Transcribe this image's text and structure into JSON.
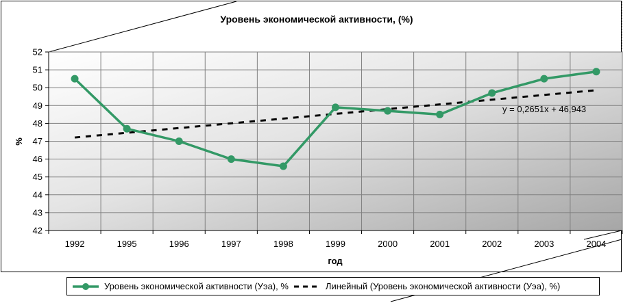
{
  "chart_data": {
    "type": "line",
    "title": "Уровень экономической активности, (%)",
    "xlabel": "год",
    "ylabel": "%",
    "categories": [
      "1992",
      "1995",
      "1996",
      "1997",
      "1998",
      "1999",
      "2000",
      "2001",
      "2002",
      "2003",
      "2004"
    ],
    "yticks": [
      "42",
      "43",
      "44",
      "45",
      "46",
      "47",
      "48",
      "49",
      "50",
      "51",
      "52"
    ],
    "ylim": [
      42,
      52
    ],
    "grid": true,
    "legend_position": "bottom",
    "series": [
      {
        "name": "Уровень экономической активности (Уэа), %",
        "values": [
          50.5,
          47.7,
          47.0,
          46.0,
          45.6,
          48.9,
          48.7,
          48.5,
          49.7,
          50.5,
          50.9
        ],
        "color": "#339966"
      }
    ],
    "trendline": {
      "name": "Линейный (Уровень экономической активности (Уэа), %)",
      "slope": 0.2651,
      "intercept": 46.943,
      "equation": "y = 0,2651x + 46,943",
      "color": "#000000"
    }
  }
}
